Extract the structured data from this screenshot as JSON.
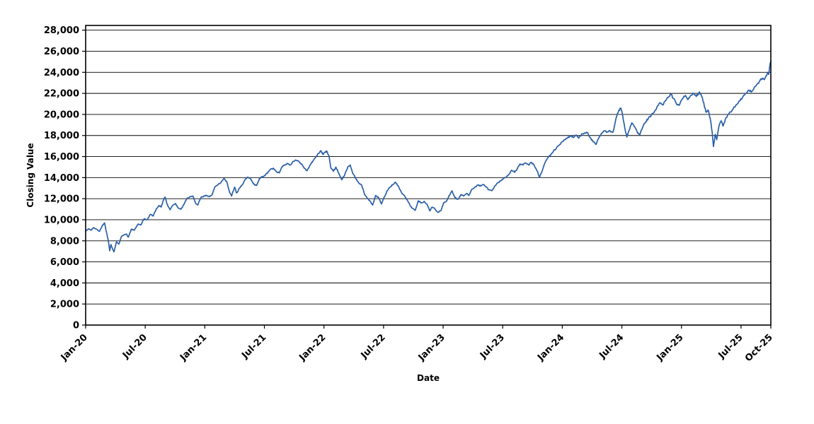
{
  "chart_data": {
    "type": "line",
    "title": "",
    "xlabel": "Date",
    "ylabel": "Closing Value",
    "x_unit": "months since Jan-2020",
    "xlim": [
      0,
      69
    ],
    "ylim": [
      0,
      28450
    ],
    "grid": "horizontal",
    "legend": "none",
    "y_ticks": [
      {
        "value": 0,
        "label": "0"
      },
      {
        "value": 2000,
        "label": "2,000"
      },
      {
        "value": 4000,
        "label": "4,000"
      },
      {
        "value": 6000,
        "label": "6,000"
      },
      {
        "value": 8000,
        "label": "8,000"
      },
      {
        "value": 10000,
        "label": "10,000"
      },
      {
        "value": 12000,
        "label": "12,000"
      },
      {
        "value": 14000,
        "label": "14,000"
      },
      {
        "value": 16000,
        "label": "16,000"
      },
      {
        "value": 18000,
        "label": "18,000"
      },
      {
        "value": 20000,
        "label": "20,000"
      },
      {
        "value": 22000,
        "label": "22,000"
      },
      {
        "value": 24000,
        "label": "24,000"
      },
      {
        "value": 26000,
        "label": "26,000"
      },
      {
        "value": 28000,
        "label": "28,000"
      }
    ],
    "x_ticks": [
      {
        "t": 0,
        "label": "Jan-20"
      },
      {
        "t": 6,
        "label": "Jul-20"
      },
      {
        "t": 12,
        "label": "Jan-21"
      },
      {
        "t": 18,
        "label": "Jul-21"
      },
      {
        "t": 24,
        "label": "Jan-22"
      },
      {
        "t": 30,
        "label": "Jul-22"
      },
      {
        "t": 36,
        "label": "Jan-23"
      },
      {
        "t": 42,
        "label": "Jul-23"
      },
      {
        "t": 48,
        "label": "Jan-24"
      },
      {
        "t": 54,
        "label": "Jul-24"
      },
      {
        "t": 60,
        "label": "Jan-25"
      },
      {
        "t": 66,
        "label": "Jul-25"
      },
      {
        "t": 69,
        "label": "Oct-25"
      }
    ],
    "series": [
      {
        "name": "Closing Value",
        "color": "#2a5fa8",
        "points": [
          [
            0.0,
            8900
          ],
          [
            0.3,
            9150
          ],
          [
            0.55,
            9000
          ],
          [
            0.8,
            9250
          ],
          [
            1.1,
            9100
          ],
          [
            1.4,
            8900
          ],
          [
            1.7,
            9500
          ],
          [
            1.9,
            9700
          ],
          [
            2.1,
            8800
          ],
          [
            2.3,
            7900
          ],
          [
            2.42,
            7050
          ],
          [
            2.55,
            7650
          ],
          [
            2.7,
            7250
          ],
          [
            2.85,
            6950
          ],
          [
            3.0,
            7500
          ],
          [
            3.1,
            7900
          ],
          [
            3.35,
            7700
          ],
          [
            3.6,
            8400
          ],
          [
            3.85,
            8550
          ],
          [
            4.1,
            8650
          ],
          [
            4.3,
            8350
          ],
          [
            4.6,
            9100
          ],
          [
            4.9,
            9000
          ],
          [
            5.3,
            9600
          ],
          [
            5.55,
            9500
          ],
          [
            5.9,
            10100
          ],
          [
            6.2,
            10000
          ],
          [
            6.5,
            10500
          ],
          [
            6.8,
            10350
          ],
          [
            7.1,
            11000
          ],
          [
            7.4,
            11350
          ],
          [
            7.6,
            11200
          ],
          [
            7.8,
            11800
          ],
          [
            8.0,
            12150
          ],
          [
            8.2,
            11500
          ],
          [
            8.5,
            10950
          ],
          [
            8.8,
            11400
          ],
          [
            9.05,
            11550
          ],
          [
            9.3,
            11150
          ],
          [
            9.6,
            11000
          ],
          [
            9.9,
            11450
          ],
          [
            10.2,
            12000
          ],
          [
            10.5,
            12200
          ],
          [
            10.8,
            12250
          ],
          [
            11.05,
            11600
          ],
          [
            11.3,
            11400
          ],
          [
            11.6,
            12100
          ],
          [
            11.9,
            12250
          ],
          [
            12.2,
            12300
          ],
          [
            12.5,
            12200
          ],
          [
            12.75,
            12400
          ],
          [
            13.0,
            13100
          ],
          [
            13.3,
            13300
          ],
          [
            13.6,
            13500
          ],
          [
            13.9,
            13900
          ],
          [
            14.2,
            13650
          ],
          [
            14.5,
            12600
          ],
          [
            14.7,
            12250
          ],
          [
            15.0,
            13100
          ],
          [
            15.2,
            12550
          ],
          [
            15.5,
            13000
          ],
          [
            15.75,
            13300
          ],
          [
            16.0,
            13700
          ],
          [
            16.3,
            14050
          ],
          [
            16.6,
            13900
          ],
          [
            16.9,
            13400
          ],
          [
            17.2,
            13250
          ],
          [
            17.5,
            13900
          ],
          [
            17.75,
            14100
          ],
          [
            18.0,
            14200
          ],
          [
            18.3,
            14400
          ],
          [
            18.6,
            14800
          ],
          [
            18.9,
            14900
          ],
          [
            19.2,
            14600
          ],
          [
            19.5,
            14450
          ],
          [
            19.75,
            15000
          ],
          [
            20.0,
            15200
          ],
          [
            20.3,
            15350
          ],
          [
            20.6,
            15200
          ],
          [
            20.9,
            15550
          ],
          [
            21.2,
            15650
          ],
          [
            21.5,
            15500
          ],
          [
            21.75,
            15300
          ],
          [
            22.0,
            14900
          ],
          [
            22.3,
            14650
          ],
          [
            22.6,
            15200
          ],
          [
            22.9,
            15600
          ],
          [
            23.2,
            16000
          ],
          [
            23.45,
            16300
          ],
          [
            23.7,
            16550
          ],
          [
            23.9,
            16200
          ],
          [
            24.1,
            16400
          ],
          [
            24.3,
            16500
          ],
          [
            24.5,
            16100
          ],
          [
            24.7,
            14900
          ],
          [
            24.95,
            14600
          ],
          [
            25.2,
            15000
          ],
          [
            25.5,
            14400
          ],
          [
            25.8,
            13800
          ],
          [
            26.1,
            14300
          ],
          [
            26.4,
            15000
          ],
          [
            26.65,
            15200
          ],
          [
            26.9,
            14400
          ],
          [
            27.2,
            13900
          ],
          [
            27.5,
            13500
          ],
          [
            27.8,
            13300
          ],
          [
            28.1,
            12400
          ],
          [
            28.4,
            12000
          ],
          [
            28.65,
            11750
          ],
          [
            28.9,
            11400
          ],
          [
            29.2,
            12300
          ],
          [
            29.5,
            12100
          ],
          [
            29.8,
            11500
          ],
          [
            30.1,
            12200
          ],
          [
            30.4,
            12800
          ],
          [
            30.65,
            13100
          ],
          [
            30.9,
            13300
          ],
          [
            31.2,
            13570
          ],
          [
            31.5,
            13200
          ],
          [
            31.8,
            12600
          ],
          [
            32.1,
            12300
          ],
          [
            32.35,
            11900
          ],
          [
            32.65,
            11400
          ],
          [
            32.9,
            11100
          ],
          [
            33.2,
            10900
          ],
          [
            33.5,
            11800
          ],
          [
            33.8,
            11600
          ],
          [
            34.1,
            11750
          ],
          [
            34.35,
            11500
          ],
          [
            34.65,
            10850
          ],
          [
            34.9,
            11200
          ],
          [
            35.2,
            11000
          ],
          [
            35.5,
            10700
          ],
          [
            35.8,
            10900
          ],
          [
            36.05,
            11600
          ],
          [
            36.35,
            11800
          ],
          [
            36.6,
            12300
          ],
          [
            36.9,
            12750
          ],
          [
            37.2,
            12100
          ],
          [
            37.5,
            11950
          ],
          [
            37.8,
            12400
          ],
          [
            38.05,
            12250
          ],
          [
            38.35,
            12500
          ],
          [
            38.6,
            12300
          ],
          [
            38.9,
            12900
          ],
          [
            39.2,
            13100
          ],
          [
            39.5,
            13300
          ],
          [
            39.8,
            13200
          ],
          [
            40.05,
            13350
          ],
          [
            40.35,
            13100
          ],
          [
            40.6,
            12850
          ],
          [
            40.9,
            12750
          ],
          [
            41.2,
            13200
          ],
          [
            41.5,
            13500
          ],
          [
            41.8,
            13700
          ],
          [
            42.05,
            13900
          ],
          [
            42.35,
            14050
          ],
          [
            42.6,
            14300
          ],
          [
            42.9,
            14700
          ],
          [
            43.2,
            14500
          ],
          [
            43.5,
            14900
          ],
          [
            43.75,
            15300
          ],
          [
            44.05,
            15200
          ],
          [
            44.3,
            15400
          ],
          [
            44.6,
            15200
          ],
          [
            44.9,
            15450
          ],
          [
            45.2,
            15100
          ],
          [
            45.5,
            14600
          ],
          [
            45.7,
            14000
          ],
          [
            46.0,
            14700
          ],
          [
            46.25,
            15400
          ],
          [
            46.55,
            15900
          ],
          [
            46.85,
            16200
          ],
          [
            47.1,
            16500
          ],
          [
            47.4,
            16800
          ],
          [
            47.7,
            17100
          ],
          [
            47.95,
            17400
          ],
          [
            48.25,
            17600
          ],
          [
            48.55,
            17800
          ],
          [
            48.8,
            17950
          ],
          [
            49.1,
            17800
          ],
          [
            49.4,
            18050
          ],
          [
            49.65,
            17750
          ],
          [
            49.95,
            18150
          ],
          [
            50.25,
            18250
          ],
          [
            50.5,
            18300
          ],
          [
            50.8,
            17800
          ],
          [
            51.1,
            17400
          ],
          [
            51.4,
            17150
          ],
          [
            51.65,
            17700
          ],
          [
            51.95,
            18200
          ],
          [
            52.25,
            18450
          ],
          [
            52.5,
            18300
          ],
          [
            52.8,
            18450
          ],
          [
            53.1,
            18300
          ],
          [
            53.4,
            19600
          ],
          [
            53.7,
            20400
          ],
          [
            53.9,
            20600
          ],
          [
            54.1,
            19800
          ],
          [
            54.3,
            18700
          ],
          [
            54.5,
            17850
          ],
          [
            54.75,
            18500
          ],
          [
            55.0,
            19200
          ],
          [
            55.3,
            18800
          ],
          [
            55.6,
            18200
          ],
          [
            55.8,
            18050
          ],
          [
            56.1,
            18800
          ],
          [
            56.4,
            19300
          ],
          [
            56.65,
            19600
          ],
          [
            56.95,
            19900
          ],
          [
            57.25,
            20200
          ],
          [
            57.5,
            20600
          ],
          [
            57.8,
            21100
          ],
          [
            58.1,
            20900
          ],
          [
            58.4,
            21300
          ],
          [
            58.65,
            21600
          ],
          [
            58.95,
            21900
          ],
          [
            59.25,
            21500
          ],
          [
            59.5,
            21000
          ],
          [
            59.8,
            20900
          ],
          [
            60.1,
            21500
          ],
          [
            60.4,
            21800
          ],
          [
            60.65,
            21400
          ],
          [
            60.95,
            21800
          ],
          [
            61.2,
            22000
          ],
          [
            61.5,
            21700
          ],
          [
            61.8,
            22150
          ],
          [
            62.1,
            21600
          ],
          [
            62.3,
            20800
          ],
          [
            62.5,
            20200
          ],
          [
            62.7,
            20400
          ],
          [
            62.9,
            19600
          ],
          [
            63.1,
            18300
          ],
          [
            63.22,
            16950
          ],
          [
            63.4,
            18100
          ],
          [
            63.55,
            17600
          ],
          [
            63.8,
            19000
          ],
          [
            64.0,
            19400
          ],
          [
            64.2,
            18900
          ],
          [
            64.5,
            19700
          ],
          [
            64.8,
            20100
          ],
          [
            65.1,
            20400
          ],
          [
            65.35,
            20700
          ],
          [
            65.65,
            21000
          ],
          [
            65.9,
            21300
          ],
          [
            66.2,
            21700
          ],
          [
            66.5,
            22000
          ],
          [
            66.8,
            22300
          ],
          [
            67.1,
            22200
          ],
          [
            67.35,
            22600
          ],
          [
            67.65,
            22900
          ],
          [
            67.9,
            23200
          ],
          [
            68.15,
            23400
          ],
          [
            68.35,
            23300
          ],
          [
            68.55,
            23700
          ],
          [
            68.7,
            24000
          ],
          [
            68.78,
            23800
          ],
          [
            68.9,
            24600
          ],
          [
            69.0,
            25050
          ]
        ]
      }
    ]
  }
}
